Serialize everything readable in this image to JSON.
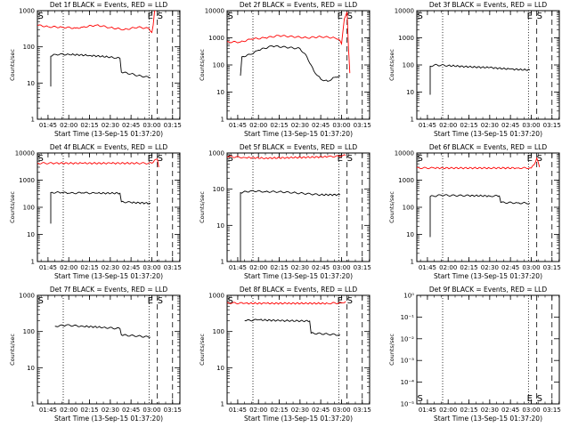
{
  "chart_data": [
    {
      "type": "line",
      "title": "Det 1f BLACK = Events, RED = LLD",
      "xlabel": "Start Time (13-Sep-15 01:37:20)",
      "ylabel": "Counts/sec",
      "x_ticks": [
        "01:45",
        "02:00",
        "02:15",
        "02:30",
        "02:45",
        "03:00",
        "03:15"
      ],
      "y_ticks": [
        "1",
        "10",
        "100",
        "1000"
      ],
      "y_scale": "log",
      "ylim": [
        1,
        1000
      ],
      "markers": [
        {
          "label": "S",
          "time": "01:37"
        },
        {
          "label": "E",
          "time": "03:01"
        },
        {
          "label": "S",
          "time": "03:04"
        }
      ],
      "series": [
        {
          "color": "#000000",
          "start": "01:47",
          "end": "02:59",
          "points": [
            [
              "01:47",
              8
            ],
            [
              "01:47",
              55
            ],
            [
              "01:50",
              62
            ],
            [
              "02:00",
              62
            ],
            [
              "02:15",
              58
            ],
            [
              "02:30",
              52
            ],
            [
              "02:37",
              48
            ],
            [
              "02:38",
              20
            ],
            [
              "02:45",
              18
            ],
            [
              "02:50",
              16
            ],
            [
              "02:55",
              15
            ],
            [
              "02:59",
              14
            ]
          ]
        },
        {
          "color": "#ff0000",
          "start": "01:37",
          "end": "03:06",
          "points": [
            [
              "01:37",
              400
            ],
            [
              "01:45",
              360
            ],
            [
              "01:55",
              350
            ],
            [
              "02:05",
              330
            ],
            [
              "02:10",
              350
            ],
            [
              "02:20",
              400
            ],
            [
              "02:30",
              340
            ],
            [
              "02:40",
              300
            ],
            [
              "02:50",
              350
            ],
            [
              "02:58",
              320
            ],
            [
              "03:00",
              250
            ],
            [
              "03:01",
              400
            ],
            [
              "03:02",
              1000
            ],
            [
              "03:03",
              1000
            ]
          ]
        }
      ]
    },
    {
      "type": "line",
      "title": "Det 2f BLACK = Events, RED = LLD",
      "xlabel": "Start Time (13-Sep-15 01:37:20)",
      "ylabel": "Counts/sec",
      "x_ticks": [
        "01:45",
        "02:00",
        "02:15",
        "02:30",
        "02:45",
        "03:00",
        "03:15"
      ],
      "y_ticks": [
        "1",
        "10",
        "100",
        "1000",
        "10000"
      ],
      "y_scale": "log",
      "ylim": [
        1,
        10000
      ],
      "markers": [
        {
          "label": "S",
          "time": "01:37"
        },
        {
          "label": "E",
          "time": "03:01"
        },
        {
          "label": "S",
          "time": "03:04"
        }
      ],
      "series": [
        {
          "color": "#000000",
          "start": "01:47",
          "end": "02:59",
          "points": [
            [
              "01:47",
              40
            ],
            [
              "01:48",
              200
            ],
            [
              "01:55",
              250
            ],
            [
              "02:00",
              350
            ],
            [
              "02:10",
              500
            ],
            [
              "02:20",
              450
            ],
            [
              "02:30",
              400
            ],
            [
              "02:35",
              200
            ],
            [
              "02:40",
              60
            ],
            [
              "02:45",
              30
            ],
            [
              "02:50",
              25
            ],
            [
              "02:55",
              35
            ],
            [
              "02:59",
              40
            ]
          ]
        },
        {
          "color": "#ff0000",
          "start": "01:37",
          "end": "03:06",
          "points": [
            [
              "01:37",
              700
            ],
            [
              "01:47",
              700
            ],
            [
              "01:55",
              900
            ],
            [
              "02:05",
              1000
            ],
            [
              "02:15",
              1200
            ],
            [
              "02:25",
              1100
            ],
            [
              "02:35",
              1000
            ],
            [
              "02:45",
              1100
            ],
            [
              "02:55",
              1000
            ],
            [
              "02:58",
              900
            ],
            [
              "03:00",
              600
            ],
            [
              "03:02",
              5000
            ],
            [
              "03:04",
              9000
            ],
            [
              "03:05",
              500
            ],
            [
              "03:06",
              50
            ]
          ]
        }
      ]
    },
    {
      "type": "line",
      "title": "Det 3f BLACK = Events, RED = LLD",
      "xlabel": "Start Time (13-Sep-15 01:37:20)",
      "ylabel": "Counts/sec",
      "x_ticks": [
        "01:45",
        "02:00",
        "02:15",
        "02:30",
        "02:45",
        "03:00",
        "03:15"
      ],
      "y_ticks": [
        "1",
        "10",
        "100",
        "1000",
        "10000"
      ],
      "y_scale": "log",
      "ylim": [
        1,
        10000
      ],
      "markers": [
        {
          "label": "S",
          "time": "01:37"
        },
        {
          "label": "E",
          "time": "03:01"
        },
        {
          "label": "S",
          "time": "03:04"
        }
      ],
      "series": [
        {
          "color": "#000000",
          "start": "01:47",
          "end": "02:59",
          "points": [
            [
              "01:47",
              8
            ],
            [
              "01:47",
              90
            ],
            [
              "01:50",
              100
            ],
            [
              "02:00",
              95
            ],
            [
              "02:15",
              85
            ],
            [
              "02:30",
              80
            ],
            [
              "02:45",
              70
            ],
            [
              "02:59",
              65
            ]
          ]
        }
      ]
    },
    {
      "type": "line",
      "title": "Det 4f BLACK = Events, RED = LLD",
      "xlabel": "Start Time (13-Sep-15 01:37:20)",
      "ylabel": "Counts/sec",
      "x_ticks": [
        "01:45",
        "02:00",
        "02:15",
        "02:30",
        "02:45",
        "03:00",
        "03:15"
      ],
      "y_ticks": [
        "1",
        "10",
        "100",
        "1000",
        "10000"
      ],
      "y_scale": "log",
      "ylim": [
        1,
        10000
      ],
      "markers": [
        {
          "label": "S",
          "time": "01:37"
        },
        {
          "label": "E",
          "time": "03:01"
        },
        {
          "label": "S",
          "time": "03:04"
        }
      ],
      "series": [
        {
          "color": "#000000",
          "start": "01:47",
          "end": "02:59",
          "points": [
            [
              "01:47",
              25
            ],
            [
              "01:47",
              350
            ],
            [
              "01:55",
              350
            ],
            [
              "02:00",
              330
            ],
            [
              "02:10",
              340
            ],
            [
              "02:20",
              330
            ],
            [
              "02:37",
              330
            ],
            [
              "02:38",
              160
            ],
            [
              "02:45",
              150
            ],
            [
              "02:59",
              140
            ]
          ]
        },
        {
          "color": "#ff0000",
          "start": "01:37",
          "end": "03:06",
          "points": [
            [
              "01:37",
              4200
            ],
            [
              "01:50",
              4200
            ],
            [
              "02:10",
              4200
            ],
            [
              "02:30",
              4200
            ],
            [
              "02:50",
              4200
            ],
            [
              "03:00",
              4200
            ],
            [
              "03:02",
              5500
            ],
            [
              "03:04",
              6000
            ],
            [
              "03:05",
              3000
            ]
          ]
        }
      ]
    },
    {
      "type": "line",
      "title": "Det 5f BLACK = Events, RED = LLD",
      "xlabel": "Start Time (13-Sep-15 01:37:20)",
      "ylabel": "Counts/sec",
      "x_ticks": [
        "01:45",
        "02:00",
        "02:15",
        "02:30",
        "02:45",
        "03:00",
        "03:15"
      ],
      "y_ticks": [
        "1",
        "10",
        "100",
        "1000"
      ],
      "y_scale": "log",
      "ylim": [
        1,
        1000
      ],
      "markers": [
        {
          "label": "S",
          "time": "01:37"
        },
        {
          "label": "E",
          "time": "03:01"
        },
        {
          "label": "S",
          "time": "03:04"
        }
      ],
      "series": [
        {
          "color": "#000000",
          "start": "01:47",
          "end": "02:59",
          "points": [
            [
              "01:47",
              1
            ],
            [
              "01:47",
              80
            ],
            [
              "01:55",
              90
            ],
            [
              "02:05",
              85
            ],
            [
              "02:15",
              85
            ],
            [
              "02:25",
              80
            ],
            [
              "02:35",
              75
            ],
            [
              "02:45",
              70
            ],
            [
              "02:59",
              70
            ]
          ]
        },
        {
          "color": "#ff0000",
          "start": "01:37",
          "end": "03:04",
          "points": [
            [
              "01:37",
              800
            ],
            [
              "01:50",
              750
            ],
            [
              "02:05",
              720
            ],
            [
              "02:20",
              740
            ],
            [
              "02:35",
              760
            ],
            [
              "02:50",
              790
            ],
            [
              "03:00",
              820
            ],
            [
              "03:03",
              870
            ]
          ]
        }
      ]
    },
    {
      "type": "line",
      "title": "Det 6f BLACK = Events, RED = LLD",
      "xlabel": "Start Time (13-Sep-15 01:37:20)",
      "ylabel": "Counts/sec",
      "x_ticks": [
        "01:45",
        "02:00",
        "02:15",
        "02:30",
        "02:45",
        "03:00",
        "03:15"
      ],
      "y_ticks": [
        "1",
        "10",
        "100",
        "1000",
        "10000"
      ],
      "y_scale": "log",
      "ylim": [
        1,
        10000
      ],
      "markers": [
        {
          "label": "S",
          "time": "01:37"
        },
        {
          "label": "E",
          "time": "03:01"
        },
        {
          "label": "S",
          "time": "03:04"
        }
      ],
      "series": [
        {
          "color": "#000000",
          "start": "01:47",
          "end": "02:59",
          "points": [
            [
              "01:47",
              8
            ],
            [
              "01:47",
              250
            ],
            [
              "01:55",
              280
            ],
            [
              "02:05",
              270
            ],
            [
              "02:15",
              270
            ],
            [
              "02:30",
              260
            ],
            [
              "02:37",
              260
            ],
            [
              "02:38",
              150
            ],
            [
              "02:50",
              145
            ],
            [
              "02:59",
              140
            ]
          ]
        },
        {
          "color": "#ff0000",
          "start": "01:37",
          "end": "03:06",
          "points": [
            [
              "01:37",
              2800
            ],
            [
              "01:50",
              2800
            ],
            [
              "02:10",
              2800
            ],
            [
              "02:30",
              2800
            ],
            [
              "02:50",
              2800
            ],
            [
              "03:00",
              2800
            ],
            [
              "03:03",
              4500
            ],
            [
              "03:04",
              6500
            ],
            [
              "03:06",
              3000
            ]
          ]
        }
      ]
    },
    {
      "type": "line",
      "title": "Det 7f BLACK = Events, RED = LLD",
      "xlabel": "Start Time (13-Sep-15 01:37:20)",
      "ylabel": "Counts/sec",
      "x_ticks": [
        "01:45",
        "02:00",
        "02:15",
        "02:30",
        "02:45",
        "03:00",
        "03:15"
      ],
      "y_ticks": [
        "1",
        "10",
        "100",
        "1000"
      ],
      "y_scale": "log",
      "ylim": [
        1,
        1000
      ],
      "markers": [
        {
          "label": "S",
          "time": "01:37"
        },
        {
          "label": "E",
          "time": "03:01"
        },
        {
          "label": "S",
          "time": "03:04"
        }
      ],
      "series": [
        {
          "color": "#000000",
          "start": "01:50",
          "end": "02:59",
          "points": [
            [
              "01:50",
              140
            ],
            [
              "01:58",
              150
            ],
            [
              "02:10",
              140
            ],
            [
              "02:25",
              130
            ],
            [
              "02:37",
              120
            ],
            [
              "02:38",
              80
            ],
            [
              "02:50",
              75
            ],
            [
              "02:59",
              70
            ]
          ]
        }
      ]
    },
    {
      "type": "line",
      "title": "Det 8f BLACK = Events, RED = LLD",
      "xlabel": "Start Time (13-Sep-15 01:37:20)",
      "ylabel": "Counts/sec",
      "x_ticks": [
        "01:45",
        "02:00",
        "02:15",
        "02:30",
        "02:45",
        "03:00",
        "03:15"
      ],
      "y_ticks": [
        "1",
        "10",
        "100",
        "1000"
      ],
      "y_scale": "log",
      "ylim": [
        1,
        1000
      ],
      "markers": [
        {
          "label": "S",
          "time": "01:37"
        },
        {
          "label": "E",
          "time": "03:01"
        },
        {
          "label": "S",
          "time": "03:04"
        }
      ],
      "series": [
        {
          "color": "#000000",
          "start": "01:50",
          "end": "02:59",
          "points": [
            [
              "01:50",
              200
            ],
            [
              "02:00",
              210
            ],
            [
              "02:15",
              200
            ],
            [
              "02:37",
              195
            ],
            [
              "02:38",
              90
            ],
            [
              "02:50",
              85
            ],
            [
              "02:59",
              80
            ]
          ]
        },
        {
          "color": "#ff0000",
          "start": "01:37",
          "end": "03:04",
          "points": [
            [
              "01:37",
              620
            ],
            [
              "01:50",
              600
            ],
            [
              "02:05",
              600
            ],
            [
              "02:20",
              600
            ],
            [
              "02:35",
              600
            ],
            [
              "02:50",
              600
            ],
            [
              "03:00",
              620
            ],
            [
              "03:03",
              680
            ]
          ]
        }
      ]
    },
    {
      "type": "line",
      "title": "Det 9f BLACK = Events, RED = LLD",
      "xlabel": "Start Time (13-Sep-15 01:37:20)",
      "ylabel": "Counts/sec",
      "x_ticks": [
        "01:45",
        "02:00",
        "02:15",
        "02:30",
        "02:45",
        "03:00",
        "03:15"
      ],
      "y_ticks": [
        "10⁰",
        "10⁻¹",
        "10⁻²",
        "10⁻³",
        "10⁻⁴",
        "10⁻⁵"
      ],
      "y_tick_exponents": [
        0,
        -1,
        -2,
        -3,
        -4,
        -5
      ],
      "y_scale": "log",
      "ylim_exponents": [
        0,
        -5
      ],
      "markers": [
        {
          "label": "S",
          "time": "01:37"
        },
        {
          "label": "E",
          "time": "03:01"
        },
        {
          "label": "S",
          "time": "03:04"
        }
      ],
      "series": []
    }
  ]
}
